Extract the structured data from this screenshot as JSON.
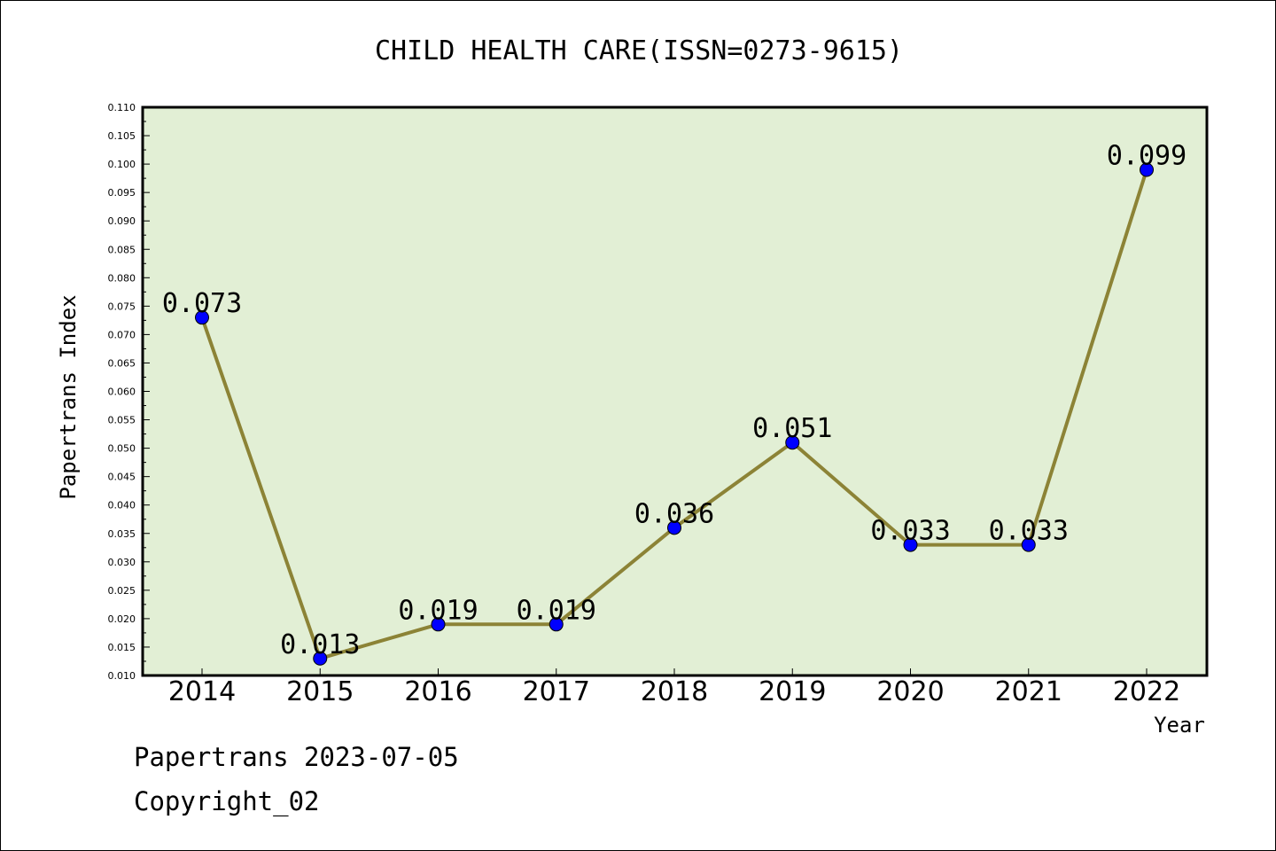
{
  "chart_data": {
    "type": "line",
    "title": "CHILD HEALTH CARE(ISSN=0273-9615)",
    "xlabel": "Year",
    "ylabel": "Papertrans Index",
    "categories": [
      "2014",
      "2015",
      "2016",
      "2017",
      "2018",
      "2019",
      "2020",
      "2021",
      "2022"
    ],
    "series": [
      {
        "values": [
          0.073,
          0.013,
          0.019,
          0.019,
          0.036,
          0.051,
          0.033,
          0.033,
          0.099
        ],
        "labels": [
          "0.073",
          "0.013",
          "0.019",
          "0.019",
          "0.036",
          "0.051",
          "0.033",
          "0.033",
          "0.099"
        ]
      }
    ],
    "ylim": [
      0.01,
      0.11
    ],
    "ytick_labels": [
      "0.010",
      "0.015",
      "0.020",
      "0.025",
      "0.030",
      "0.035",
      "0.040",
      "0.045",
      "0.050",
      "0.055",
      "0.060",
      "0.065",
      "0.070",
      "0.075",
      "0.080",
      "0.085",
      "0.090",
      "0.095",
      "0.100",
      "0.105",
      "0.110"
    ],
    "grid": false,
    "legend": "none",
    "colors": {
      "plot_background": "#e2efd5",
      "line": "#8c8336",
      "marker": "#0000ff"
    }
  },
  "footer": {
    "line1": "Papertrans 2023-07-05",
    "line2": "Copyright_02"
  }
}
